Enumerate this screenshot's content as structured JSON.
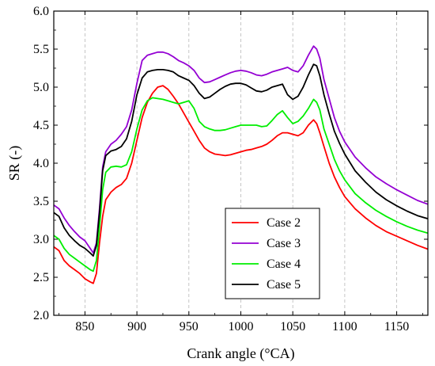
{
  "chart_data": {
    "type": "line",
    "title": "",
    "xlabel": "Crank angle (°CA)",
    "ylabel": "SR (-)",
    "xlim": [
      820,
      1180
    ],
    "ylim": [
      2.0,
      6.0
    ],
    "x_ticks": [
      850,
      900,
      950,
      1000,
      1050,
      1100,
      1150
    ],
    "y_ticks": [
      2.0,
      2.5,
      3.0,
      3.5,
      4.0,
      4.5,
      5.0,
      5.5,
      6.0
    ],
    "grid": true,
    "grid_style": "dashed vertical",
    "legend_position": "bottom-center",
    "series": [
      {
        "name": "Case 2",
        "color": "#ff0000",
        "points": [
          [
            820,
            2.9
          ],
          [
            825,
            2.85
          ],
          [
            830,
            2.72
          ],
          [
            835,
            2.65
          ],
          [
            840,
            2.6
          ],
          [
            845,
            2.55
          ],
          [
            850,
            2.48
          ],
          [
            855,
            2.44
          ],
          [
            858,
            2.42
          ],
          [
            861,
            2.55
          ],
          [
            864,
            2.95
          ],
          [
            867,
            3.3
          ],
          [
            870,
            3.52
          ],
          [
            875,
            3.62
          ],
          [
            880,
            3.68
          ],
          [
            885,
            3.72
          ],
          [
            890,
            3.8
          ],
          [
            895,
            4.0
          ],
          [
            900,
            4.3
          ],
          [
            905,
            4.6
          ],
          [
            910,
            4.8
          ],
          [
            915,
            4.92
          ],
          [
            920,
            5.0
          ],
          [
            925,
            5.02
          ],
          [
            930,
            4.97
          ],
          [
            935,
            4.88
          ],
          [
            940,
            4.78
          ],
          [
            945,
            4.66
          ],
          [
            950,
            4.54
          ],
          [
            955,
            4.42
          ],
          [
            960,
            4.3
          ],
          [
            965,
            4.2
          ],
          [
            970,
            4.15
          ],
          [
            975,
            4.12
          ],
          [
            980,
            4.11
          ],
          [
            985,
            4.1
          ],
          [
            990,
            4.11
          ],
          [
            995,
            4.13
          ],
          [
            1000,
            4.15
          ],
          [
            1005,
            4.17
          ],
          [
            1010,
            4.18
          ],
          [
            1015,
            4.2
          ],
          [
            1020,
            4.22
          ],
          [
            1025,
            4.25
          ],
          [
            1030,
            4.3
          ],
          [
            1035,
            4.36
          ],
          [
            1040,
            4.4
          ],
          [
            1045,
            4.4
          ],
          [
            1050,
            4.38
          ],
          [
            1055,
            4.36
          ],
          [
            1060,
            4.4
          ],
          [
            1065,
            4.5
          ],
          [
            1070,
            4.57
          ],
          [
            1073,
            4.52
          ],
          [
            1076,
            4.4
          ],
          [
            1080,
            4.22
          ],
          [
            1085,
            4.0
          ],
          [
            1090,
            3.82
          ],
          [
            1095,
            3.68
          ],
          [
            1100,
            3.56
          ],
          [
            1110,
            3.4
          ],
          [
            1120,
            3.28
          ],
          [
            1130,
            3.18
          ],
          [
            1140,
            3.1
          ],
          [
            1150,
            3.04
          ],
          [
            1160,
            2.98
          ],
          [
            1170,
            2.92
          ],
          [
            1180,
            2.87
          ]
        ]
      },
      {
        "name": "Case 3",
        "color": "#9400d3",
        "points": [
          [
            820,
            3.45
          ],
          [
            825,
            3.4
          ],
          [
            830,
            3.28
          ],
          [
            835,
            3.18
          ],
          [
            840,
            3.1
          ],
          [
            845,
            3.03
          ],
          [
            850,
            2.98
          ],
          [
            855,
            2.88
          ],
          [
            858,
            2.82
          ],
          [
            861,
            2.95
          ],
          [
            864,
            3.4
          ],
          [
            867,
            3.95
          ],
          [
            870,
            4.15
          ],
          [
            875,
            4.25
          ],
          [
            880,
            4.3
          ],
          [
            885,
            4.38
          ],
          [
            890,
            4.48
          ],
          [
            895,
            4.7
          ],
          [
            900,
            5.05
          ],
          [
            905,
            5.35
          ],
          [
            910,
            5.42
          ],
          [
            915,
            5.44
          ],
          [
            920,
            5.46
          ],
          [
            925,
            5.46
          ],
          [
            930,
            5.44
          ],
          [
            935,
            5.4
          ],
          [
            940,
            5.35
          ],
          [
            945,
            5.32
          ],
          [
            950,
            5.28
          ],
          [
            955,
            5.22
          ],
          [
            960,
            5.12
          ],
          [
            965,
            5.06
          ],
          [
            970,
            5.07
          ],
          [
            975,
            5.1
          ],
          [
            980,
            5.13
          ],
          [
            985,
            5.16
          ],
          [
            990,
            5.19
          ],
          [
            995,
            5.21
          ],
          [
            1000,
            5.22
          ],
          [
            1005,
            5.21
          ],
          [
            1010,
            5.19
          ],
          [
            1015,
            5.16
          ],
          [
            1020,
            5.15
          ],
          [
            1025,
            5.17
          ],
          [
            1030,
            5.2
          ],
          [
            1035,
            5.22
          ],
          [
            1040,
            5.24
          ],
          [
            1045,
            5.26
          ],
          [
            1050,
            5.22
          ],
          [
            1055,
            5.2
          ],
          [
            1060,
            5.28
          ],
          [
            1065,
            5.42
          ],
          [
            1070,
            5.54
          ],
          [
            1073,
            5.5
          ],
          [
            1076,
            5.38
          ],
          [
            1080,
            5.1
          ],
          [
            1085,
            4.85
          ],
          [
            1090,
            4.6
          ],
          [
            1095,
            4.42
          ],
          [
            1100,
            4.28
          ],
          [
            1110,
            4.08
          ],
          [
            1120,
            3.94
          ],
          [
            1130,
            3.82
          ],
          [
            1140,
            3.73
          ],
          [
            1150,
            3.65
          ],
          [
            1160,
            3.58
          ],
          [
            1170,
            3.51
          ],
          [
            1180,
            3.46
          ]
        ]
      },
      {
        "name": "Case 4",
        "color": "#00ee00",
        "points": [
          [
            820,
            3.05
          ],
          [
            825,
            3.0
          ],
          [
            830,
            2.88
          ],
          [
            835,
            2.8
          ],
          [
            840,
            2.75
          ],
          [
            845,
            2.7
          ],
          [
            850,
            2.65
          ],
          [
            855,
            2.6
          ],
          [
            858,
            2.58
          ],
          [
            861,
            2.72
          ],
          [
            864,
            3.15
          ],
          [
            867,
            3.65
          ],
          [
            870,
            3.88
          ],
          [
            875,
            3.95
          ],
          [
            880,
            3.96
          ],
          [
            885,
            3.95
          ],
          [
            890,
            3.98
          ],
          [
            895,
            4.15
          ],
          [
            900,
            4.45
          ],
          [
            905,
            4.7
          ],
          [
            910,
            4.82
          ],
          [
            915,
            4.86
          ],
          [
            920,
            4.85
          ],
          [
            925,
            4.84
          ],
          [
            930,
            4.82
          ],
          [
            935,
            4.8
          ],
          [
            940,
            4.78
          ],
          [
            945,
            4.8
          ],
          [
            950,
            4.82
          ],
          [
            955,
            4.72
          ],
          [
            960,
            4.55
          ],
          [
            965,
            4.48
          ],
          [
            970,
            4.45
          ],
          [
            975,
            4.43
          ],
          [
            980,
            4.43
          ],
          [
            985,
            4.44
          ],
          [
            990,
            4.46
          ],
          [
            995,
            4.48
          ],
          [
            1000,
            4.5
          ],
          [
            1005,
            4.5
          ],
          [
            1010,
            4.5
          ],
          [
            1015,
            4.5
          ],
          [
            1020,
            4.48
          ],
          [
            1025,
            4.49
          ],
          [
            1030,
            4.56
          ],
          [
            1035,
            4.64
          ],
          [
            1040,
            4.69
          ],
          [
            1045,
            4.6
          ],
          [
            1050,
            4.52
          ],
          [
            1055,
            4.55
          ],
          [
            1060,
            4.62
          ],
          [
            1065,
            4.72
          ],
          [
            1070,
            4.84
          ],
          [
            1073,
            4.8
          ],
          [
            1076,
            4.7
          ],
          [
            1080,
            4.45
          ],
          [
            1085,
            4.25
          ],
          [
            1090,
            4.05
          ],
          [
            1095,
            3.9
          ],
          [
            1100,
            3.78
          ],
          [
            1110,
            3.6
          ],
          [
            1120,
            3.48
          ],
          [
            1130,
            3.38
          ],
          [
            1140,
            3.3
          ],
          [
            1150,
            3.23
          ],
          [
            1160,
            3.17
          ],
          [
            1170,
            3.12
          ],
          [
            1180,
            3.08
          ]
        ]
      },
      {
        "name": "Case 5",
        "color": "#000000",
        "points": [
          [
            820,
            3.35
          ],
          [
            825,
            3.3
          ],
          [
            830,
            3.15
          ],
          [
            835,
            3.05
          ],
          [
            840,
            2.98
          ],
          [
            845,
            2.92
          ],
          [
            850,
            2.88
          ],
          [
            855,
            2.82
          ],
          [
            858,
            2.78
          ],
          [
            861,
            2.92
          ],
          [
            864,
            3.35
          ],
          [
            867,
            3.9
          ],
          [
            870,
            4.1
          ],
          [
            875,
            4.16
          ],
          [
            880,
            4.18
          ],
          [
            885,
            4.22
          ],
          [
            890,
            4.32
          ],
          [
            895,
            4.55
          ],
          [
            900,
            4.9
          ],
          [
            905,
            5.12
          ],
          [
            910,
            5.2
          ],
          [
            915,
            5.22
          ],
          [
            920,
            5.23
          ],
          [
            925,
            5.23
          ],
          [
            930,
            5.22
          ],
          [
            935,
            5.2
          ],
          [
            940,
            5.15
          ],
          [
            945,
            5.12
          ],
          [
            950,
            5.09
          ],
          [
            955,
            5.02
          ],
          [
            960,
            4.92
          ],
          [
            965,
            4.85
          ],
          [
            970,
            4.87
          ],
          [
            975,
            4.92
          ],
          [
            980,
            4.97
          ],
          [
            985,
            5.01
          ],
          [
            990,
            5.04
          ],
          [
            995,
            5.05
          ],
          [
            1000,
            5.05
          ],
          [
            1005,
            5.03
          ],
          [
            1010,
            4.99
          ],
          [
            1015,
            4.95
          ],
          [
            1020,
            4.94
          ],
          [
            1025,
            4.96
          ],
          [
            1030,
            5.0
          ],
          [
            1035,
            5.02
          ],
          [
            1040,
            5.04
          ],
          [
            1045,
            4.9
          ],
          [
            1050,
            4.84
          ],
          [
            1055,
            4.88
          ],
          [
            1060,
            5.0
          ],
          [
            1065,
            5.16
          ],
          [
            1070,
            5.3
          ],
          [
            1073,
            5.28
          ],
          [
            1076,
            5.15
          ],
          [
            1080,
            4.9
          ],
          [
            1085,
            4.65
          ],
          [
            1090,
            4.42
          ],
          [
            1095,
            4.26
          ],
          [
            1100,
            4.12
          ],
          [
            1110,
            3.9
          ],
          [
            1120,
            3.75
          ],
          [
            1130,
            3.62
          ],
          [
            1140,
            3.52
          ],
          [
            1150,
            3.44
          ],
          [
            1160,
            3.37
          ],
          [
            1170,
            3.31
          ],
          [
            1180,
            3.27
          ]
        ]
      }
    ]
  }
}
